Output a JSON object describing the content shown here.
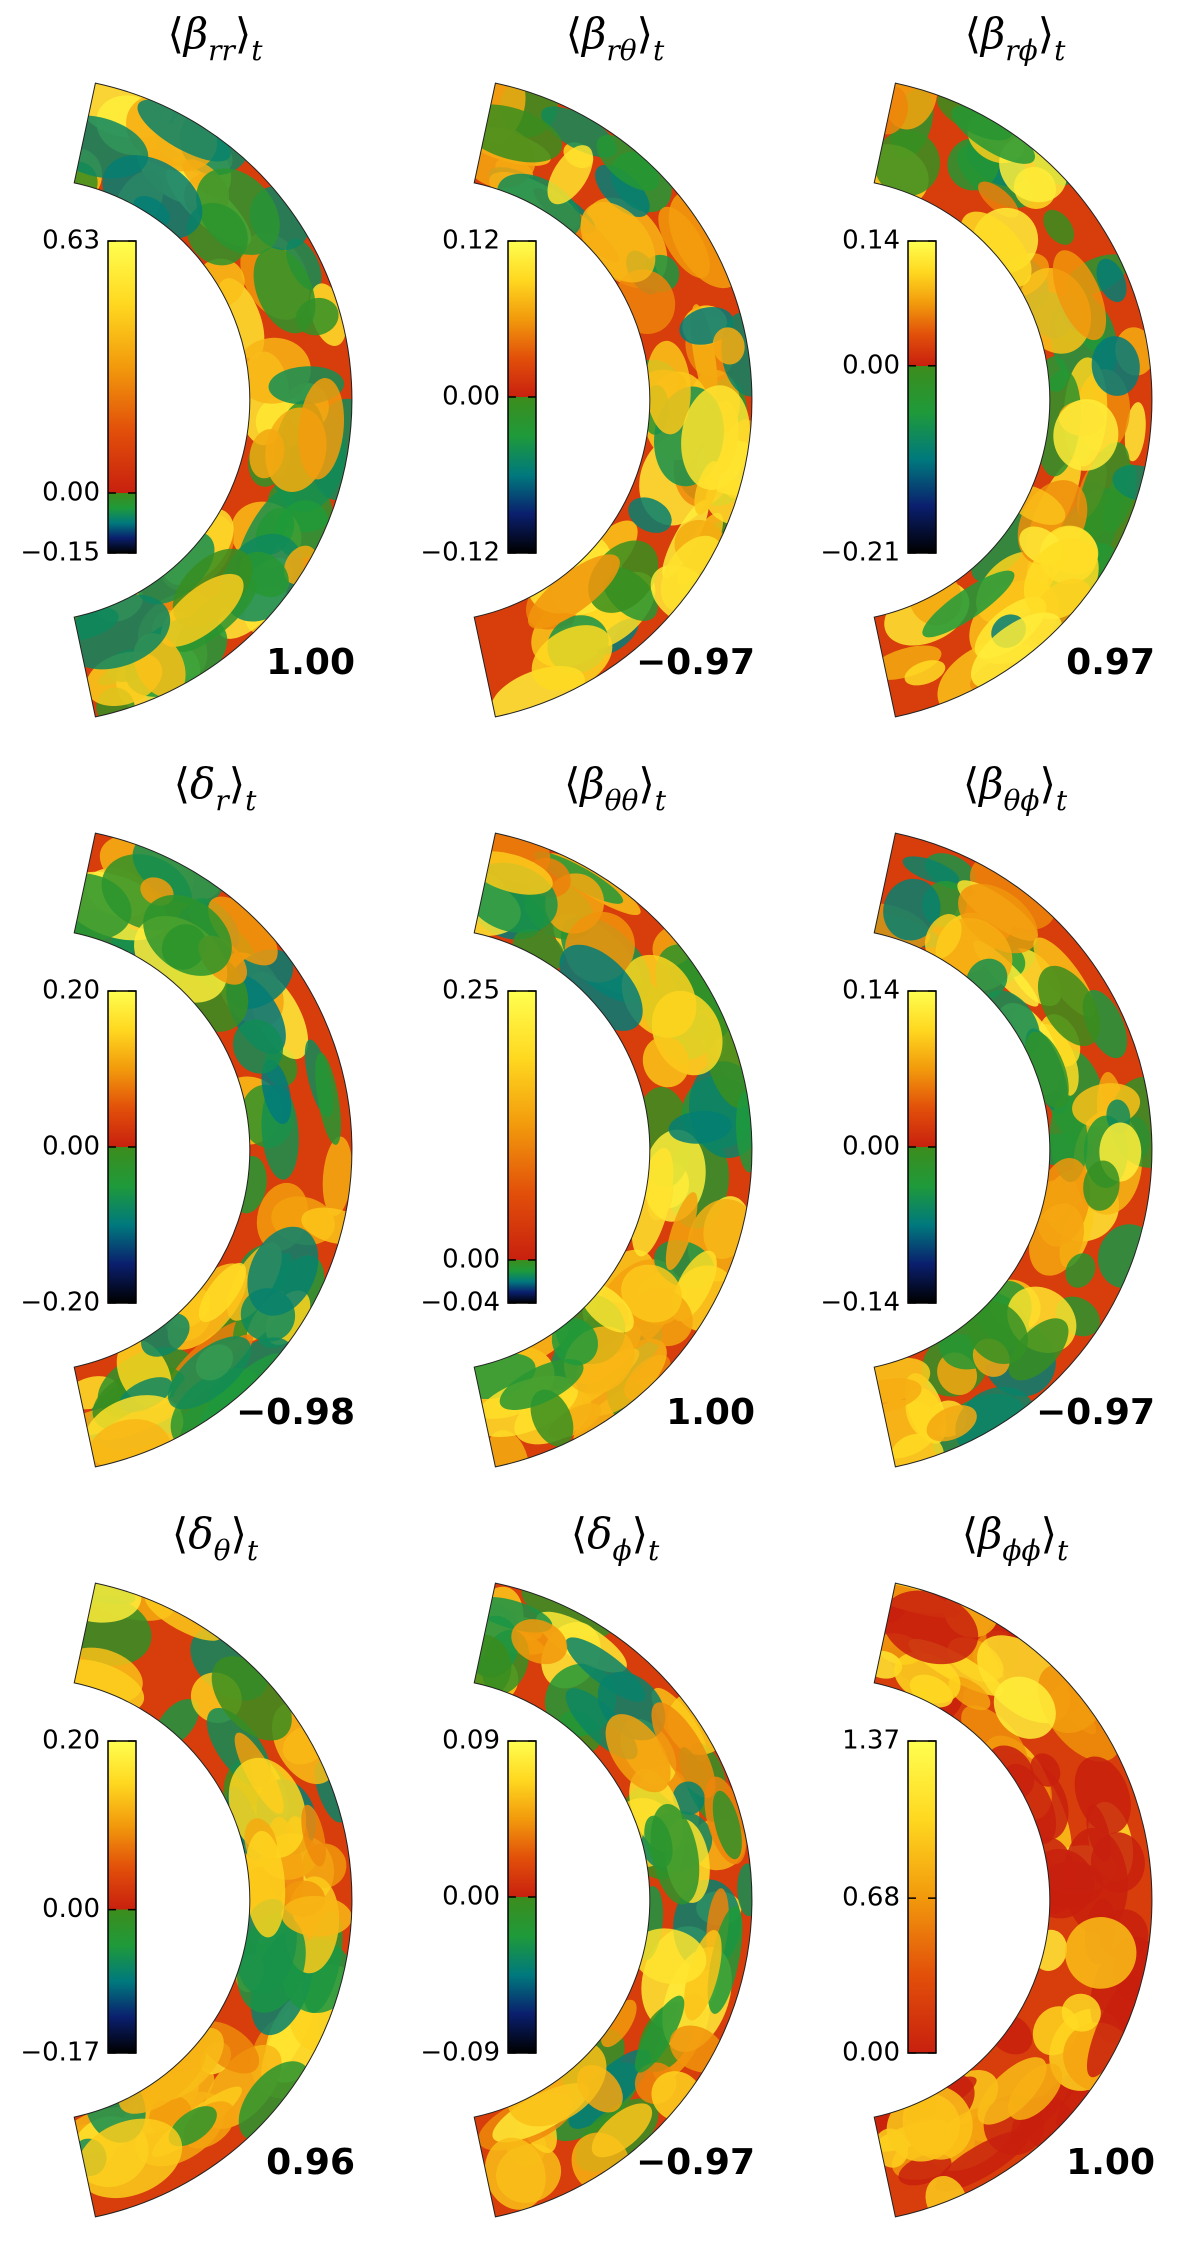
{
  "colormap_negative": [
    "#000000",
    "#0a1f6e",
    "#00797d",
    "#1f9a3a",
    "#3c8c1c"
  ],
  "colormap_positive": [
    "#c8200e",
    "#e2500a",
    "#f29a0c",
    "#ffd820",
    "#ffff50"
  ],
  "chart_data": [
    {
      "type": "heatmap",
      "title": [
        "⟨",
        "β",
        "rr",
        "⟩",
        "t"
      ],
      "zlim": [
        -0.15,
        0.63
      ],
      "zticks": [
        {
          "value": 0.63,
          "label": "0.63"
        },
        {
          "value": 0,
          "label": "0.00"
        },
        {
          "value": -0.15,
          "label": "−0.15"
        }
      ],
      "annotation": "1.00"
    },
    {
      "type": "heatmap",
      "title": [
        "⟨",
        "β",
        "rθ",
        "⟩",
        "t"
      ],
      "zlim": [
        -0.12,
        0.12
      ],
      "zticks": [
        {
          "value": 0.12,
          "label": "0.12"
        },
        {
          "value": 0,
          "label": "0.00"
        },
        {
          "value": -0.12,
          "label": "−0.12"
        }
      ],
      "annotation": "−0.97"
    },
    {
      "type": "heatmap",
      "title": [
        "⟨",
        "β",
        "rϕ",
        "⟩",
        "t"
      ],
      "zlim": [
        -0.21,
        0.14
      ],
      "zticks": [
        {
          "value": 0.14,
          "label": "0.14"
        },
        {
          "value": 0,
          "label": "0.00"
        },
        {
          "value": -0.21,
          "label": "−0.21"
        }
      ],
      "annotation": "0.97"
    },
    {
      "type": "heatmap",
      "title": [
        "⟨",
        "δ",
        "r",
        "⟩",
        "t"
      ],
      "zlim": [
        -0.2,
        0.2
      ],
      "zticks": [
        {
          "value": 0.2,
          "label": "0.20"
        },
        {
          "value": 0,
          "label": "0.00"
        },
        {
          "value": -0.2,
          "label": "−0.20"
        }
      ],
      "annotation": "−0.98"
    },
    {
      "type": "heatmap",
      "title": [
        "⟨",
        "β",
        "θθ",
        "⟩",
        "t"
      ],
      "zlim": [
        -0.04,
        0.25
      ],
      "zticks": [
        {
          "value": 0.25,
          "label": "0.25"
        },
        {
          "value": 0,
          "label": "0.00"
        },
        {
          "value": -0.04,
          "label": "−0.04"
        }
      ],
      "annotation": "1.00"
    },
    {
      "type": "heatmap",
      "title": [
        "⟨",
        "β",
        "θϕ",
        "⟩",
        "t"
      ],
      "zlim": [
        -0.14,
        0.14
      ],
      "zticks": [
        {
          "value": 0.14,
          "label": "0.14"
        },
        {
          "value": 0,
          "label": "0.00"
        },
        {
          "value": -0.14,
          "label": "−0.14"
        }
      ],
      "annotation": "−0.97"
    },
    {
      "type": "heatmap",
      "title": [
        "⟨",
        "δ",
        "θ",
        "⟩",
        "t"
      ],
      "zlim": [
        -0.17,
        0.2
      ],
      "zticks": [
        {
          "value": 0.2,
          "label": "0.20"
        },
        {
          "value": 0,
          "label": "0.00"
        },
        {
          "value": -0.17,
          "label": "−0.17"
        }
      ],
      "annotation": "0.96"
    },
    {
      "type": "heatmap",
      "title": [
        "⟨",
        "δ",
        "ϕ",
        "⟩",
        "t"
      ],
      "zlim": [
        -0.09,
        0.09
      ],
      "zticks": [
        {
          "value": 0.09,
          "label": "0.09"
        },
        {
          "value": 0,
          "label": "0.00"
        },
        {
          "value": -0.09,
          "label": "−0.09"
        }
      ],
      "annotation": "−0.97"
    },
    {
      "type": "heatmap",
      "title": [
        "⟨",
        "β",
        "ϕϕ",
        "⟩",
        "t"
      ],
      "zlim": [
        0,
        1.37
      ],
      "zticks": [
        {
          "value": 1.37,
          "label": "1.37"
        },
        {
          "value": 0.68,
          "label": "0.68"
        },
        {
          "value": 0,
          "label": "0.00"
        }
      ],
      "annotation": "1.00"
    }
  ]
}
